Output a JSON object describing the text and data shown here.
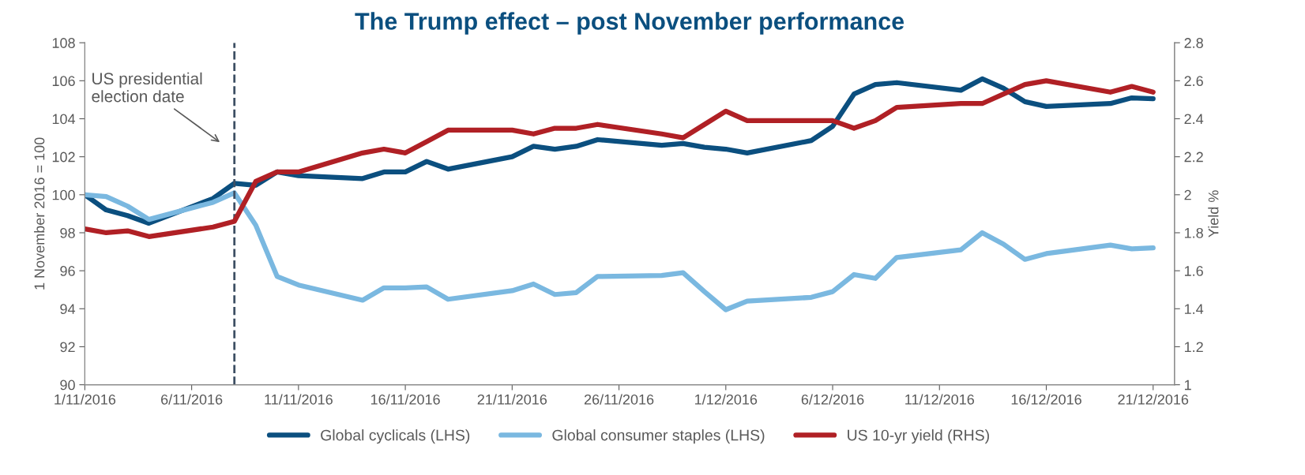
{
  "chart_data": {
    "type": "line",
    "title": "The Trump effect – post November performance",
    "ylabel": "1 November 2016 = 100",
    "y2label": "Yield %",
    "x": [
      "2016-11-01",
      "2016-11-02",
      "2016-11-03",
      "2016-11-04",
      "2016-11-07",
      "2016-11-08",
      "2016-11-09",
      "2016-11-10",
      "2016-11-11",
      "2016-11-14",
      "2016-11-15",
      "2016-11-16",
      "2016-11-17",
      "2016-11-18",
      "2016-11-21",
      "2016-11-22",
      "2016-11-23",
      "2016-11-24",
      "2016-11-25",
      "2016-11-28",
      "2016-11-29",
      "2016-11-30",
      "2016-12-01",
      "2016-12-02",
      "2016-12-05",
      "2016-12-06",
      "2016-12-07",
      "2016-12-08",
      "2016-12-09",
      "2016-12-12",
      "2016-12-13",
      "2016-12-14",
      "2016-12-15",
      "2016-12-16",
      "2016-12-19",
      "2016-12-20",
      "2016-12-21"
    ],
    "series": [
      {
        "name": "Global cyclicals (LHS)",
        "color": "#0b4f7f",
        "values": [
          100,
          99.2,
          98.9,
          98.5,
          99.8,
          100.6,
          100.5,
          101.2,
          101.0,
          100.85,
          101.2,
          101.2,
          101.75,
          101.35,
          102.0,
          102.55,
          102.4,
          102.55,
          102.9,
          102.6,
          102.7,
          102.5,
          102.4,
          102.2,
          102.85,
          103.6,
          105.3,
          105.8,
          105.9,
          105.5,
          106.1,
          105.6,
          104.9,
          104.65,
          104.8,
          105.1,
          105.05
        ]
      },
      {
        "name": "Global consumer staples (LHS)",
        "color": "#7ab8e0",
        "values": [
          100,
          99.9,
          99.4,
          98.7,
          99.6,
          100.1,
          98.4,
          95.7,
          95.25,
          94.45,
          95.1,
          95.1,
          95.15,
          94.5,
          94.95,
          95.3,
          94.75,
          94.85,
          95.7,
          95.75,
          95.9,
          94.9,
          93.95,
          94.4,
          94.6,
          94.9,
          95.8,
          95.6,
          96.7,
          97.1,
          98.0,
          97.4,
          96.6,
          96.9,
          97.35,
          97.15,
          97.2
        ]
      },
      {
        "name": "US 10-yr yield (RHS)",
        "color": "#b02025",
        "axis": "y2",
        "values": [
          1.82,
          1.8,
          1.81,
          1.78,
          1.83,
          1.86,
          2.07,
          2.12,
          2.12,
          2.22,
          2.24,
          2.22,
          2.28,
          2.34,
          2.34,
          2.32,
          2.35,
          2.35,
          2.37,
          2.32,
          2.3,
          2.37,
          2.44,
          2.39,
          2.39,
          2.39,
          2.35,
          2.39,
          2.46,
          2.48,
          2.48,
          2.53,
          2.58,
          2.6,
          2.54,
          2.57,
          2.54
        ]
      }
    ],
    "xlim": [
      "2016-11-01",
      "2016-12-22"
    ],
    "xticks": [
      {
        "value": "2016-11-01",
        "label": "1/11/2016"
      },
      {
        "value": "2016-11-06",
        "label": "6/11/2016"
      },
      {
        "value": "2016-11-11",
        "label": "11/11/2016"
      },
      {
        "value": "2016-11-16",
        "label": "16/11/2016"
      },
      {
        "value": "2016-11-21",
        "label": "21/11/2016"
      },
      {
        "value": "2016-11-26",
        "label": "26/11/2016"
      },
      {
        "value": "2016-12-01",
        "label": "1/12/2016"
      },
      {
        "value": "2016-12-06",
        "label": "6/12/2016"
      },
      {
        "value": "2016-12-11",
        "label": "11/12/2016"
      },
      {
        "value": "2016-12-16",
        "label": "16/12/2016"
      },
      {
        "value": "2016-12-21",
        "label": "21/12/2016"
      }
    ],
    "ylim": [
      90,
      108
    ],
    "yticks": [
      90,
      92,
      94,
      96,
      98,
      100,
      102,
      104,
      106,
      108
    ],
    "y2lim": [
      1,
      2.8
    ],
    "y2ticks": [
      1,
      1.2,
      1.4,
      1.6,
      1.8,
      2,
      2.2,
      2.4,
      2.6,
      2.8
    ],
    "ref_lines": [
      {
        "axis": "x",
        "value": "2016-11-08",
        "label": "US presidential\nelection date",
        "color": "#3d4f63",
        "line_style": "dashed"
      }
    ],
    "legend": "bottom",
    "grid": false,
    "marker": "none",
    "line_style": "solid"
  }
}
